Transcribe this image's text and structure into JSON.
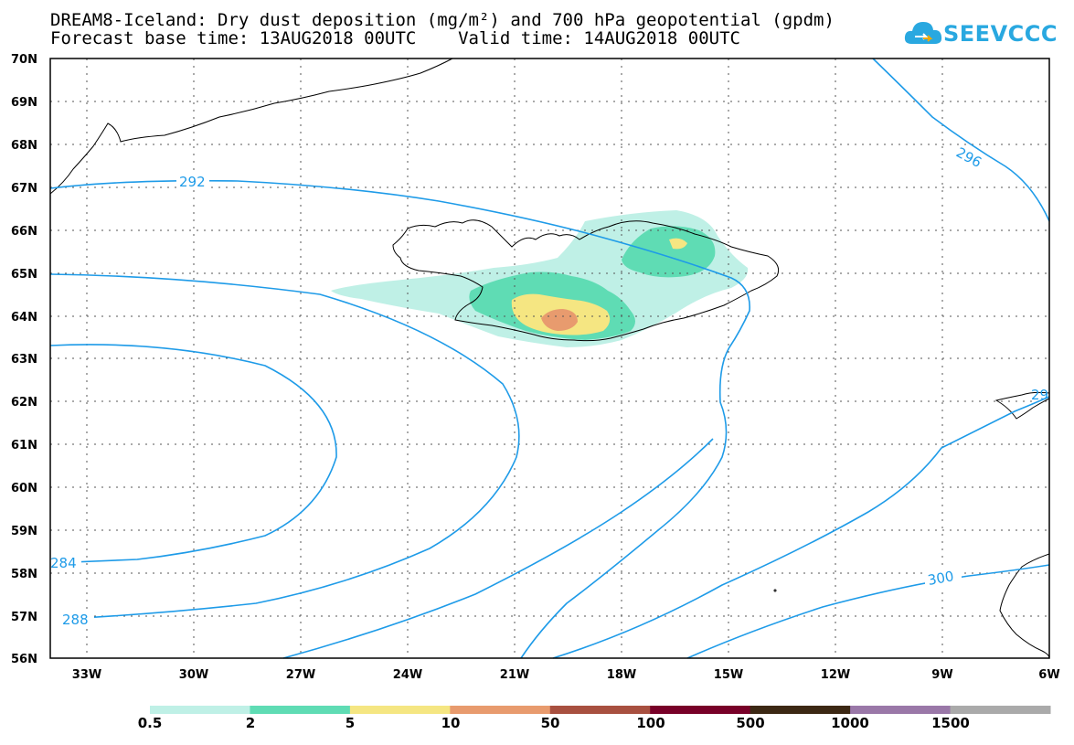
{
  "title": {
    "line1": "DREAM8-Iceland: Dry dust deposition (mg/m²) and 700 hPa geopotential (gpdm)",
    "line2": "Forecast base time: 13AUG2018 00UTC    Valid time: 14AUG2018 00UTC"
  },
  "logo": {
    "text": "SEEVCCC",
    "icon": "cloud-icon",
    "color": "#29a8e0"
  },
  "map": {
    "lat_labels": [
      "70N",
      "69N",
      "68N",
      "67N",
      "66N",
      "65N",
      "64N",
      "63N",
      "62N",
      "61N",
      "60N",
      "59N",
      "58N",
      "57N",
      "56N"
    ],
    "lon_labels": [
      "33W",
      "30W",
      "27W",
      "24W",
      "21W",
      "18W",
      "15W",
      "12W",
      "9W",
      "6W"
    ],
    "contour_labels": [
      "292",
      "296",
      "284",
      "288",
      "300",
      "29"
    ],
    "contour_color": "#1e9be8",
    "coastline_color": "#000000"
  },
  "colorbar": {
    "ticks": [
      "0.5",
      "2",
      "5",
      "10",
      "50",
      "100",
      "500",
      "1000",
      "1500"
    ],
    "colors": [
      "#bff0e6",
      "#5fdcb4",
      "#f5e682",
      "#e89b6e",
      "#a85040",
      "#780028",
      "#3c2814",
      "#9a78a8",
      "#aaaaaa"
    ]
  }
}
